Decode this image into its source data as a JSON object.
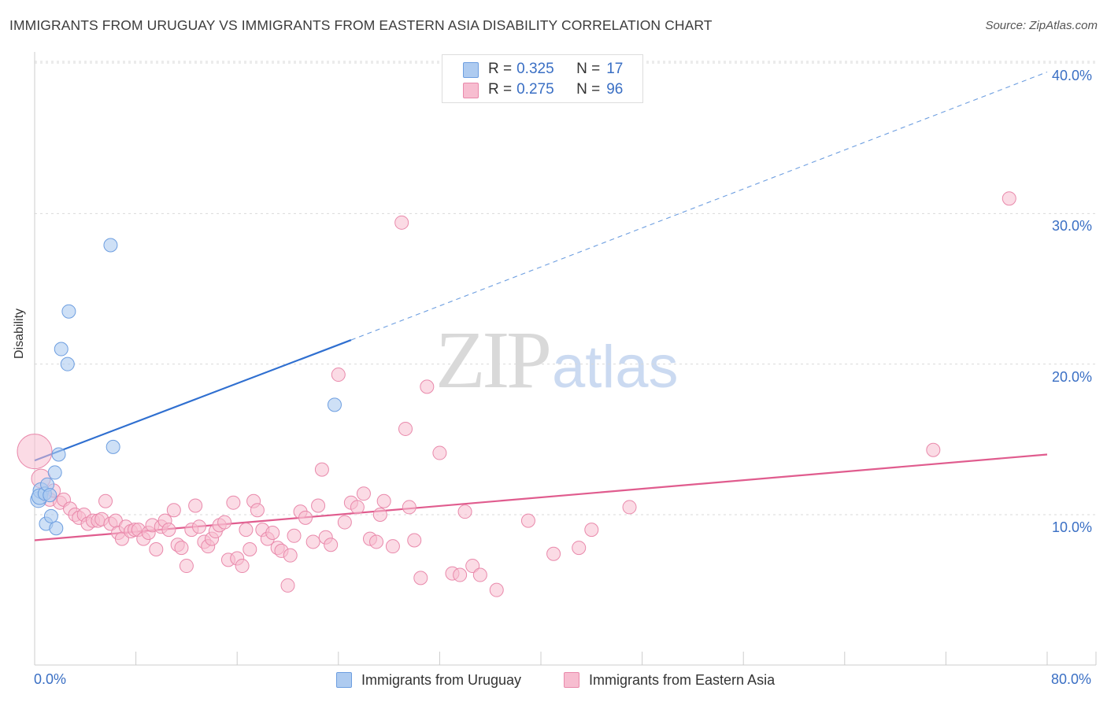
{
  "header": {
    "title": "IMMIGRANTS FROM URUGUAY VS IMMIGRANTS FROM EASTERN ASIA DISABILITY CORRELATION CHART",
    "source": "Source: ZipAtlas.com"
  },
  "watermark": {
    "zip": "ZIP",
    "atlas": "atlas"
  },
  "legend_top": {
    "rows": [
      {
        "r_label": "R =",
        "r_value": "0.325",
        "n_label": "N =",
        "n_value": "17",
        "color": "#aecbf0"
      },
      {
        "r_label": "R =",
        "r_value": "0.275",
        "n_label": "N =",
        "n_value": "96",
        "color": "#f7bdd0"
      }
    ]
  },
  "legend_bottom": [
    {
      "label": "Immigrants from Uruguay",
      "color": "#aecbf0"
    },
    {
      "label": "Immigrants from Eastern Asia",
      "color": "#f7bdd0"
    }
  ],
  "chart_data": {
    "type": "scatter",
    "title": "IMMIGRANTS FROM URUGUAY VS IMMIGRANTS FROM EASTERN ASIA DISABILITY CORRELATION CHART",
    "xlabel": "",
    "ylabel": "Disability",
    "xlim": [
      0,
      80
    ],
    "ylim": [
      0,
      42
    ],
    "x_tick_labels": [
      "0.0%",
      "80.0%"
    ],
    "y_ticks": [
      10,
      20,
      30,
      40
    ],
    "y_tick_labels": [
      "10.0%",
      "20.0%",
      "30.0%",
      "40.0%"
    ],
    "grid": true,
    "legend_position": "top-center",
    "colors": {
      "uruguay_fill": "#aecbf0",
      "uruguay_stroke": "#6d9ee0",
      "uruguay_line": "#2f6fd0",
      "asia_fill": "#f7bdd0",
      "asia_stroke": "#e989ab",
      "asia_line": "#e05c8e",
      "grid": "#d9d9d9",
      "tick_label": "#3a6fc4"
    },
    "series": [
      {
        "name": "Immigrants from Uruguay",
        "r": 0.325,
        "n": 17,
        "points": [
          [
            0.3,
            11.0
          ],
          [
            0.5,
            11.6
          ],
          [
            0.4,
            11.2
          ],
          [
            0.8,
            11.4
          ],
          [
            1.0,
            12.0
          ],
          [
            1.2,
            11.3
          ],
          [
            1.6,
            12.8
          ],
          [
            1.9,
            14.0
          ],
          [
            0.9,
            9.4
          ],
          [
            1.7,
            9.1
          ],
          [
            1.3,
            9.9
          ],
          [
            2.1,
            21.0
          ],
          [
            2.6,
            20.0
          ],
          [
            2.7,
            23.5
          ],
          [
            6.0,
            27.9
          ],
          [
            6.2,
            14.5
          ],
          [
            23.7,
            17.3
          ]
        ],
        "trend": {
          "x": [
            0,
            25
          ],
          "y": [
            13.6,
            21.6
          ],
          "dashed_extension": {
            "x": [
              25,
              80
            ],
            "y": [
              21.6,
              39.4
            ]
          }
        }
      },
      {
        "name": "Immigrants from Eastern Asia",
        "r": 0.275,
        "n": 96,
        "points": [
          [
            0.0,
            14.2
          ],
          [
            0.5,
            12.4
          ],
          [
            1.2,
            11.0
          ],
          [
            1.5,
            11.6
          ],
          [
            2.0,
            10.8
          ],
          [
            2.3,
            11.0
          ],
          [
            2.8,
            10.4
          ],
          [
            3.2,
            10.0
          ],
          [
            3.5,
            9.8
          ],
          [
            3.9,
            10.0
          ],
          [
            4.2,
            9.4
          ],
          [
            4.6,
            9.6
          ],
          [
            5.0,
            9.6
          ],
          [
            5.3,
            9.7
          ],
          [
            5.6,
            10.9
          ],
          [
            6.0,
            9.4
          ],
          [
            6.4,
            9.6
          ],
          [
            6.6,
            8.8
          ],
          [
            6.9,
            8.4
          ],
          [
            7.2,
            9.2
          ],
          [
            7.6,
            8.9
          ],
          [
            7.9,
            9.0
          ],
          [
            8.2,
            9.0
          ],
          [
            8.6,
            8.4
          ],
          [
            9.0,
            8.8
          ],
          [
            9.3,
            9.3
          ],
          [
            9.6,
            7.7
          ],
          [
            10.0,
            9.2
          ],
          [
            10.3,
            9.6
          ],
          [
            10.6,
            9.0
          ],
          [
            11.0,
            10.3
          ],
          [
            11.3,
            8.0
          ],
          [
            11.6,
            7.8
          ],
          [
            12.0,
            6.6
          ],
          [
            12.4,
            9.0
          ],
          [
            12.7,
            10.6
          ],
          [
            13.0,
            9.2
          ],
          [
            13.4,
            8.2
          ],
          [
            13.7,
            7.9
          ],
          [
            14.0,
            8.4
          ],
          [
            14.3,
            8.9
          ],
          [
            14.6,
            9.3
          ],
          [
            15.0,
            9.5
          ],
          [
            15.3,
            7.0
          ],
          [
            15.7,
            10.8
          ],
          [
            16.0,
            7.1
          ],
          [
            16.4,
            6.6
          ],
          [
            16.7,
            9.0
          ],
          [
            17.0,
            7.7
          ],
          [
            17.3,
            10.9
          ],
          [
            17.6,
            10.3
          ],
          [
            18.0,
            9.0
          ],
          [
            18.4,
            8.4
          ],
          [
            18.8,
            8.8
          ],
          [
            19.2,
            7.8
          ],
          [
            19.5,
            7.6
          ],
          [
            20.0,
            5.3
          ],
          [
            20.2,
            7.3
          ],
          [
            20.5,
            8.6
          ],
          [
            21.0,
            10.2
          ],
          [
            21.4,
            9.8
          ],
          [
            22.0,
            8.2
          ],
          [
            22.4,
            10.6
          ],
          [
            22.7,
            13.0
          ],
          [
            23.0,
            8.5
          ],
          [
            23.4,
            8.0
          ],
          [
            24.0,
            19.3
          ],
          [
            24.5,
            9.5
          ],
          [
            25.0,
            10.8
          ],
          [
            25.5,
            10.5
          ],
          [
            26.0,
            11.4
          ],
          [
            26.5,
            8.4
          ],
          [
            27.0,
            8.2
          ],
          [
            27.3,
            10.0
          ],
          [
            27.6,
            10.9
          ],
          [
            28.3,
            7.9
          ],
          [
            29.0,
            29.4
          ],
          [
            29.3,
            15.7
          ],
          [
            29.6,
            10.5
          ],
          [
            30.0,
            8.3
          ],
          [
            30.5,
            5.8
          ],
          [
            31.0,
            18.5
          ],
          [
            32.0,
            14.1
          ],
          [
            33.0,
            6.1
          ],
          [
            33.6,
            6.0
          ],
          [
            34.0,
            10.2
          ],
          [
            34.6,
            6.6
          ],
          [
            35.2,
            6.0
          ],
          [
            36.5,
            5.0
          ],
          [
            41.0,
            7.4
          ],
          [
            43.0,
            7.8
          ],
          [
            44.0,
            9.0
          ],
          [
            47.0,
            10.5
          ],
          [
            71.0,
            14.3
          ],
          [
            77.0,
            31.0
          ],
          [
            39.0,
            9.6
          ]
        ],
        "trend": {
          "x": [
            0,
            80
          ],
          "y": [
            8.3,
            14.0
          ]
        }
      }
    ]
  }
}
